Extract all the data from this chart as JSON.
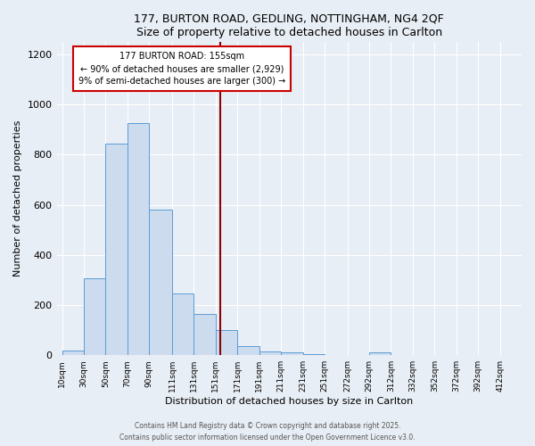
{
  "title1": "177, BURTON ROAD, GEDLING, NOTTINGHAM, NG4 2QF",
  "title2": "Size of property relative to detached houses in Carlton",
  "xlabel": "Distribution of detached houses by size in Carlton",
  "ylabel": "Number of detached properties",
  "bar_labels": [
    "10sqm",
    "30sqm",
    "50sqm",
    "70sqm",
    "90sqm",
    "111sqm",
    "131sqm",
    "151sqm",
    "171sqm",
    "191sqm",
    "211sqm",
    "231sqm",
    "251sqm",
    "272sqm",
    "292sqm",
    "312sqm",
    "332sqm",
    "352sqm",
    "372sqm",
    "392sqm",
    "412sqm"
  ],
  "bar_lefts": [
    10,
    30,
    50,
    70,
    90,
    111,
    131,
    151,
    171,
    191,
    211,
    231,
    251,
    272,
    292,
    312,
    332,
    352,
    372,
    392,
    412
  ],
  "bar_widths": [
    20,
    20,
    20,
    20,
    21,
    20,
    20,
    20,
    20,
    20,
    20,
    20,
    21,
    20,
    20,
    20,
    20,
    20,
    20,
    20,
    20
  ],
  "bar_values": [
    20,
    305,
    845,
    925,
    580,
    245,
    165,
    100,
    35,
    15,
    10,
    5,
    0,
    0,
    10,
    0,
    0,
    0,
    0,
    0,
    0
  ],
  "bar_color": "#ccdcee",
  "bar_edge_color": "#5b9bd5",
  "vline_x": 155,
  "vline_color": "#8b0000",
  "annotation_title": "177 BURTON ROAD: 155sqm",
  "annotation_line1": "← 90% of detached houses are smaller (2,929)",
  "annotation_line2": "9% of semi-detached houses are larger (300) →",
  "annotation_box_color": "#ffffff",
  "annotation_box_edge": "#cc0000",
  "ann_x": 120,
  "ann_y": 1210,
  "ylim": [
    0,
    1250
  ],
  "yticks": [
    0,
    200,
    400,
    600,
    800,
    1000,
    1200
  ],
  "xlim_min": 5,
  "xlim_max": 432,
  "footer1": "Contains HM Land Registry data © Crown copyright and database right 2025.",
  "footer2": "Contains public sector information licensed under the Open Government Licence v3.0.",
  "bg_color": "#e8eef5",
  "grid_color": "#ffffff"
}
